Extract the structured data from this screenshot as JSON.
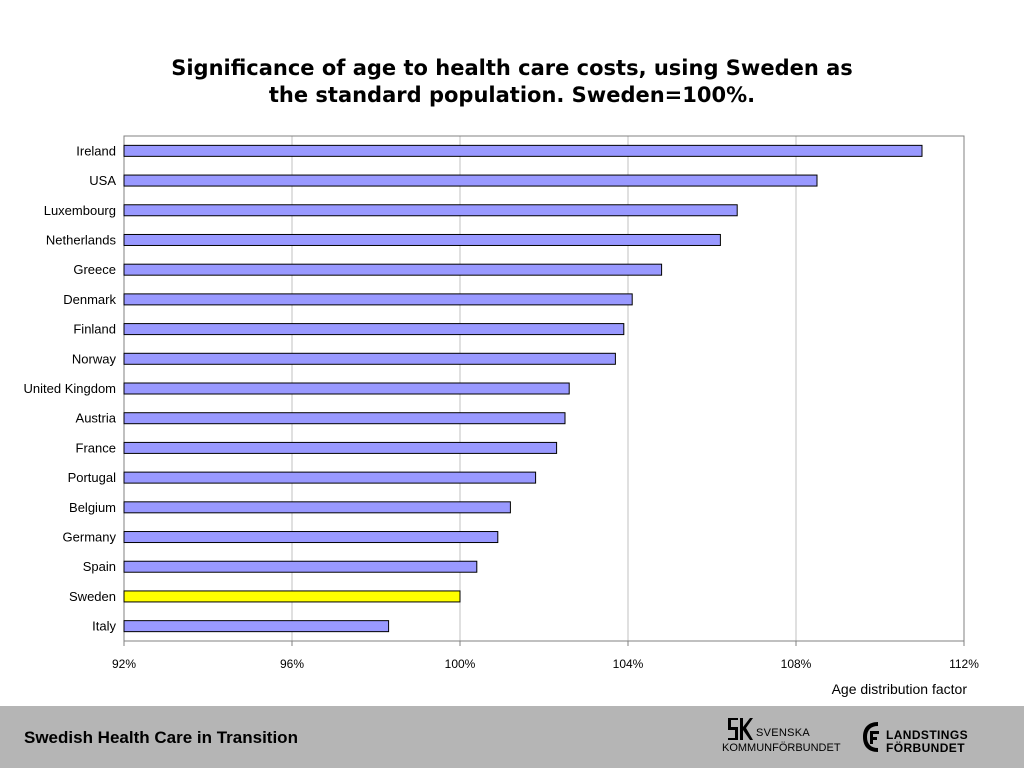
{
  "chart_data": {
    "type": "bar",
    "orientation": "horizontal",
    "title_lines": [
      "Significance of age to health care costs, using Sweden as",
      "the standard population. Sweden=100%."
    ],
    "xlabel": "Age distribution factor",
    "ylabel": "",
    "xlim": [
      92,
      112
    ],
    "x_ticks": [
      "92%",
      "96%",
      "100%",
      "104%",
      "108%",
      "112%"
    ],
    "x_tick_values": [
      92,
      96,
      100,
      104,
      108,
      112
    ],
    "grid": "vertical",
    "categories": [
      "Ireland",
      "USA",
      "Luxembourg",
      "Netherlands",
      "Greece",
      "Denmark",
      "Finland",
      "Norway",
      "United Kingdom",
      "Austria",
      "France",
      "Portugal",
      "Belgium",
      "Germany",
      "Spain",
      "Sweden",
      "Italy"
    ],
    "values": [
      111.0,
      108.5,
      106.6,
      106.2,
      104.8,
      104.1,
      103.9,
      103.7,
      102.6,
      102.5,
      102.3,
      101.8,
      101.2,
      100.9,
      100.4,
      100.0,
      98.3
    ],
    "bar_color": "#9999ff",
    "highlight": {
      "category": "Sweden",
      "color": "#ffff00"
    }
  },
  "footer": {
    "title": "Swedish Health Care in Transition",
    "logo_sk": {
      "line1": "SVENSKA",
      "line2": "KOMMUNFÖRBUNDET"
    },
    "logo_lf": {
      "line1": "LANDSTINGS",
      "line2": "FÖRBUNDET"
    }
  }
}
